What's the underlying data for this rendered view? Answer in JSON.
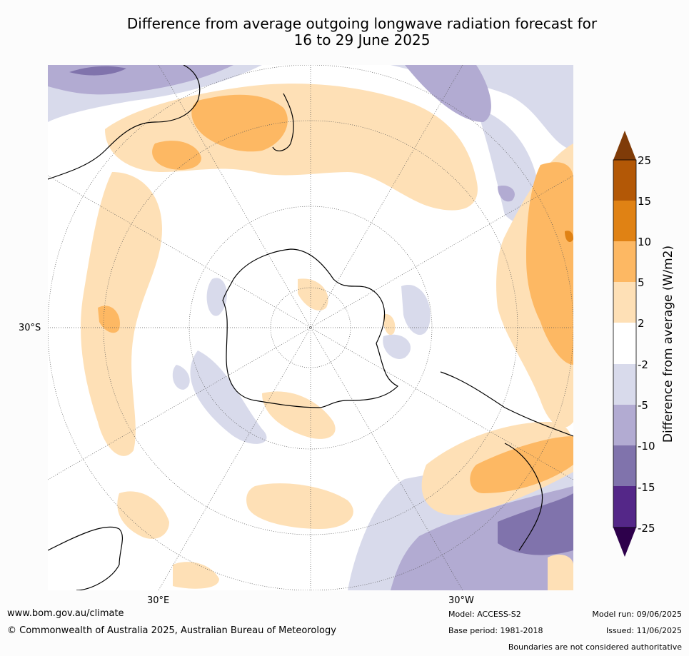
{
  "title_line1": "Difference from average outgoing longwave radiation forecast for",
  "title_line2": "16 to 29 June 2025",
  "axis_labels": {
    "lat": "30°S",
    "lon_left": "30°E",
    "lon_right": "30°W"
  },
  "colorbar": {
    "title": "Difference from average (W/m2)",
    "ticks": [
      "25",
      "15",
      "10",
      "5",
      "2",
      "-2",
      "-5",
      "-10",
      "-15",
      "-25"
    ],
    "colors": {
      "above_25": "#7f3b08",
      "15_25": "#b35806",
      "10_15": "#e08214",
      "5_10": "#fdb863",
      "2_5": "#fee0b6",
      "-2_2": "#ffffff",
      "-5_-2": "#d8daeb",
      "-10_-5": "#b2abd2",
      "-15_-10": "#8073ac",
      "-25_-15": "#542788",
      "below_-25": "#2d004b"
    }
  },
  "footer": {
    "url": "www.bom.gov.au/climate",
    "copyright": "© Commonwealth of Australia 2025, Australian Bureau of Meteorology",
    "model": "Model: ACCESS-S2",
    "model_run": "Model run: 09/06/2025",
    "base_period": "Base period: 1981-2018",
    "issued": "Issued: 11/06/2025",
    "disclaimer": "Boundaries are not considered authoritative"
  }
}
